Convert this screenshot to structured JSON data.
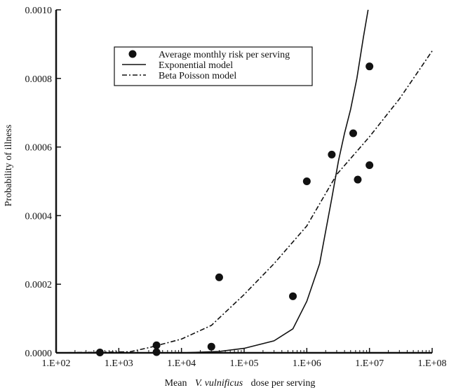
{
  "chart_data": {
    "type": "scatter",
    "title": "",
    "xlabel_prefix": "Mean",
    "xlabel_italic": "V. vulnificus",
    "xlabel_suffix": "dose per serving",
    "ylabel": "Probability of illness",
    "xscale": "log10",
    "xlim": [
      100,
      100000000
    ],
    "ylim": [
      0,
      0.001
    ],
    "x_tick_labels": [
      "1.E+02",
      "1.E+03",
      "1.E+04",
      "1.E+05",
      "1.E+06",
      "1.E+07",
      "1.E+08"
    ],
    "x_tick_exponents": [
      2,
      3,
      4,
      5,
      6,
      7,
      8
    ],
    "y_ticks": [
      0,
      0.0002,
      0.0004,
      0.0006,
      0.0008,
      0.001
    ],
    "y_tick_labels": [
      "0.0000",
      "0.0002",
      "0.0004",
      "0.0006",
      "0.0008",
      "0.0010"
    ],
    "legend_position": "top-center",
    "series": [
      {
        "name": "Average monthly risk per serving",
        "kind": "points",
        "points": [
          {
            "x": 500,
            "y": 1e-06
          },
          {
            "x": 4000,
            "y": 2e-06
          },
          {
            "x": 4000,
            "y": 2.2e-05
          },
          {
            "x": 30000,
            "y": 1.8e-05
          },
          {
            "x": 40000,
            "y": 0.00022
          },
          {
            "x": 600000,
            "y": 0.000165
          },
          {
            "x": 1000000,
            "y": 0.0005
          },
          {
            "x": 2500000,
            "y": 0.000578
          },
          {
            "x": 5500000,
            "y": 0.00064
          },
          {
            "x": 6500000,
            "y": 0.000505
          },
          {
            "x": 10000000,
            "y": 0.000547
          },
          {
            "x": 10000000,
            "y": 0.000835
          }
        ]
      },
      {
        "name": "Exponential model",
        "kind": "line-solid",
        "points": [
          {
            "x": 100,
            "y": 0
          },
          {
            "x": 10000,
            "y": 0
          },
          {
            "x": 40000,
            "y": 4e-06
          },
          {
            "x": 100000,
            "y": 1.3e-05
          },
          {
            "x": 300000,
            "y": 3.5e-05
          },
          {
            "x": 600000,
            "y": 7e-05
          },
          {
            "x": 1000000,
            "y": 0.00015
          },
          {
            "x": 1600000,
            "y": 0.00026
          },
          {
            "x": 2500000,
            "y": 0.00045
          },
          {
            "x": 3200000,
            "y": 0.00056
          },
          {
            "x": 4000000,
            "y": 0.00064
          },
          {
            "x": 5000000,
            "y": 0.00071
          },
          {
            "x": 6300000,
            "y": 0.0008
          },
          {
            "x": 8000000,
            "y": 0.00092
          },
          {
            "x": 9500000,
            "y": 0.001
          }
        ]
      },
      {
        "name": "Beta Poisson model",
        "kind": "line-dashdot",
        "points": [
          {
            "x": 100,
            "y": 0
          },
          {
            "x": 1500,
            "y": 3e-06
          },
          {
            "x": 3000,
            "y": 1.5e-05
          },
          {
            "x": 10000,
            "y": 4e-05
          },
          {
            "x": 30000,
            "y": 8e-05
          },
          {
            "x": 100000,
            "y": 0.00017
          },
          {
            "x": 300000,
            "y": 0.00026
          },
          {
            "x": 1000000,
            "y": 0.00037
          },
          {
            "x": 3000000,
            "y": 0.00052
          },
          {
            "x": 10000000,
            "y": 0.00063
          },
          {
            "x": 30000000,
            "y": 0.00074
          },
          {
            "x": 100000000,
            "y": 0.00088
          }
        ]
      }
    ]
  }
}
